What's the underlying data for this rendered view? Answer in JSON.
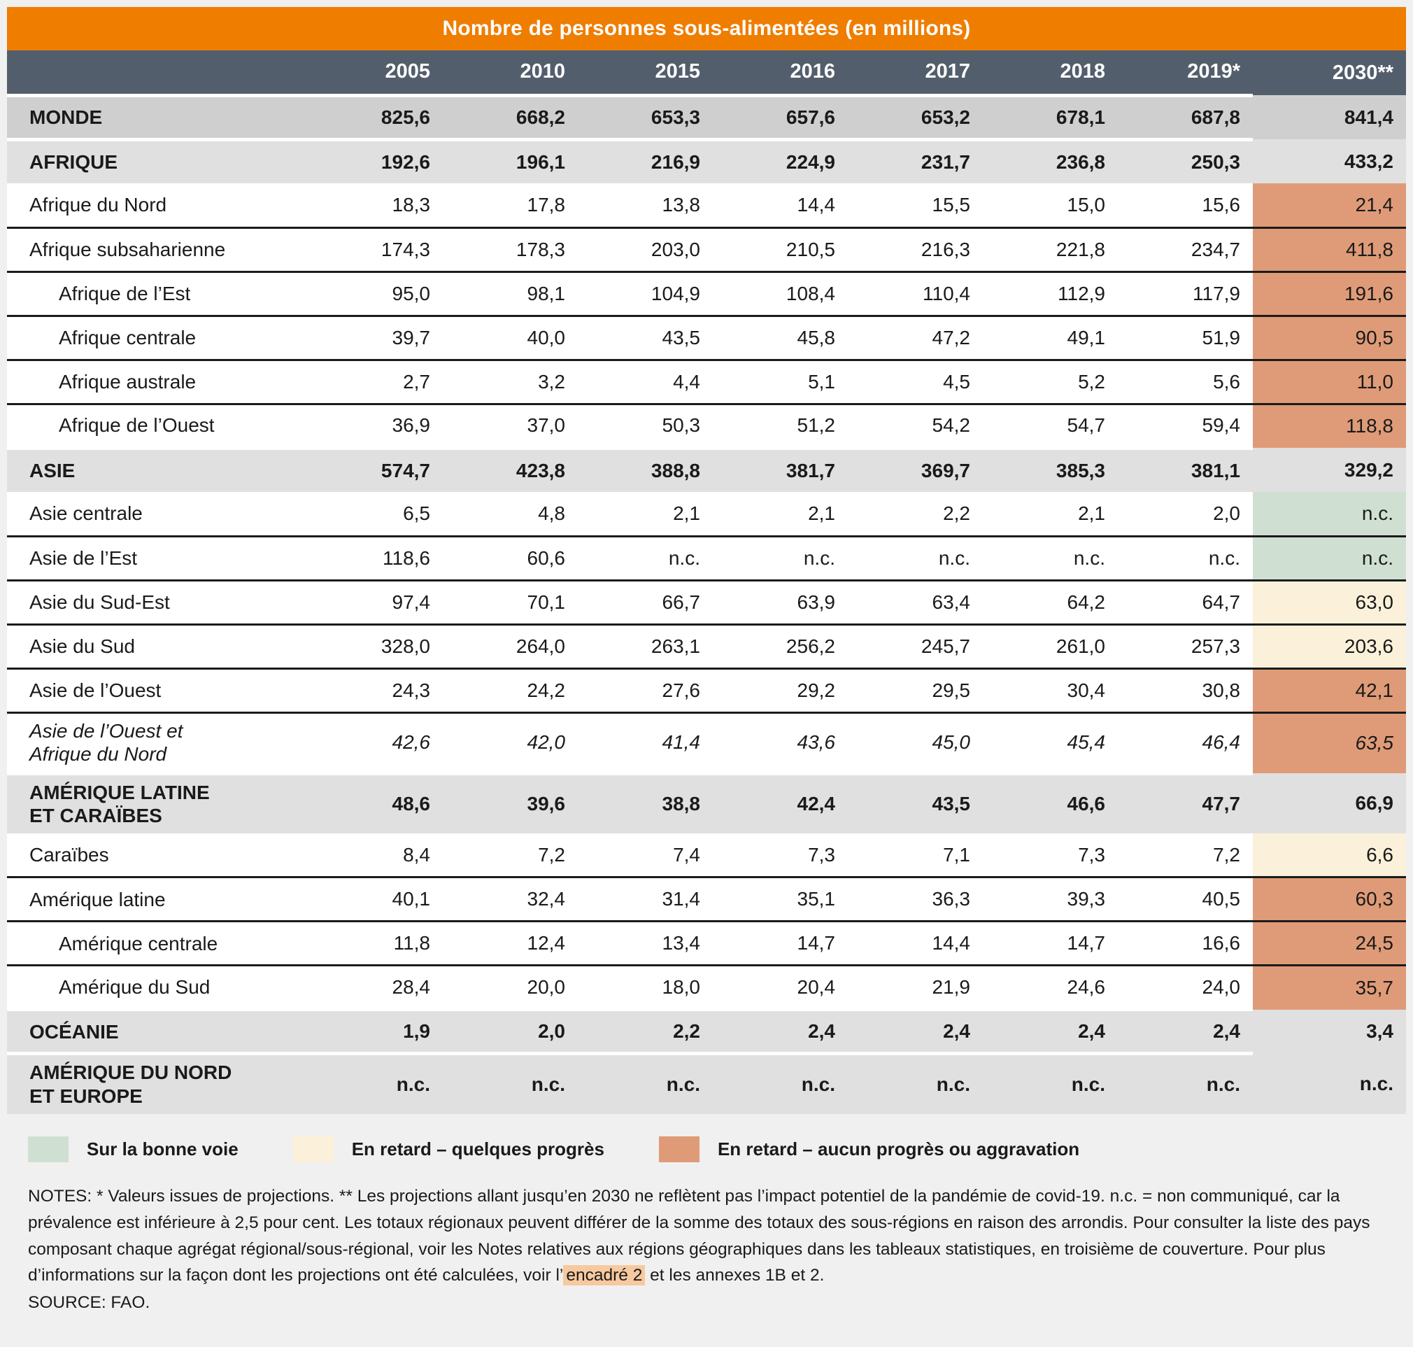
{
  "chart_data": {
    "type": "table",
    "title": "Nombre de personnes sous-alimentées (en millions)",
    "columns": [
      "2005",
      "2010",
      "2015",
      "2016",
      "2017",
      "2018",
      "2019*",
      "2030**"
    ],
    "rows": [
      {
        "label": "MONDE",
        "style": "world",
        "indent": false,
        "status": "salmon",
        "values": [
          "825,6",
          "668,2",
          "653,3",
          "657,6",
          "653,2",
          "678,1",
          "687,8",
          "841,4"
        ]
      },
      {
        "label": "AFRIQUE",
        "style": "section",
        "indent": false,
        "status": "salmon",
        "values": [
          "192,6",
          "196,1",
          "216,9",
          "224,9",
          "231,7",
          "236,8",
          "250,3",
          "433,2"
        ]
      },
      {
        "label": "Afrique du Nord",
        "style": "plain",
        "indent": false,
        "status": "salmon",
        "values": [
          "18,3",
          "17,8",
          "13,8",
          "14,4",
          "15,5",
          "15,0",
          "15,6",
          "21,4"
        ]
      },
      {
        "label": "Afrique subsaharienne",
        "style": "plain",
        "indent": false,
        "status": "salmon",
        "values": [
          "174,3",
          "178,3",
          "203,0",
          "210,5",
          "216,3",
          "221,8",
          "234,7",
          "411,8"
        ]
      },
      {
        "label": "Afrique de l’Est",
        "style": "plain",
        "indent": true,
        "status": "salmon",
        "values": [
          "95,0",
          "98,1",
          "104,9",
          "108,4",
          "110,4",
          "112,9",
          "117,9",
          "191,6"
        ]
      },
      {
        "label": "Afrique centrale",
        "style": "plain",
        "indent": true,
        "status": "salmon",
        "values": [
          "39,7",
          "40,0",
          "43,5",
          "45,8",
          "47,2",
          "49,1",
          "51,9",
          "90,5"
        ]
      },
      {
        "label": "Afrique australe",
        "style": "plain",
        "indent": true,
        "status": "salmon",
        "values": [
          "2,7",
          "3,2",
          "4,4",
          "5,1",
          "4,5",
          "5,2",
          "5,6",
          "11,0"
        ]
      },
      {
        "label": "Afrique de l’Ouest",
        "style": "plain",
        "indent": true,
        "status": "salmon",
        "values": [
          "36,9",
          "37,0",
          "50,3",
          "51,2",
          "54,2",
          "54,7",
          "59,4",
          "118,8"
        ]
      },
      {
        "label": "ASIE",
        "style": "section",
        "indent": false,
        "status": "cream",
        "values": [
          "574,7",
          "423,8",
          "388,8",
          "381,7",
          "369,7",
          "385,3",
          "381,1",
          "329,2"
        ]
      },
      {
        "label": "Asie centrale",
        "style": "plain",
        "indent": false,
        "status": "green",
        "values": [
          "6,5",
          "4,8",
          "2,1",
          "2,1",
          "2,2",
          "2,1",
          "2,0",
          "n.c."
        ]
      },
      {
        "label": "Asie de l’Est",
        "style": "plain",
        "indent": false,
        "status": "green",
        "values": [
          "118,6",
          "60,6",
          "n.c.",
          "n.c.",
          "n.c.",
          "n.c.",
          "n.c.",
          "n.c."
        ]
      },
      {
        "label": "Asie du Sud-Est",
        "style": "plain",
        "indent": false,
        "status": "cream",
        "values": [
          "97,4",
          "70,1",
          "66,7",
          "63,9",
          "63,4",
          "64,2",
          "64,7",
          "63,0"
        ]
      },
      {
        "label": "Asie du Sud",
        "style": "plain",
        "indent": false,
        "status": "cream",
        "values": [
          "328,0",
          "264,0",
          "263,1",
          "256,2",
          "245,7",
          "261,0",
          "257,3",
          "203,6"
        ]
      },
      {
        "label": "Asie de l’Ouest",
        "style": "plain",
        "indent": false,
        "status": "salmon",
        "values": [
          "24,3",
          "24,2",
          "27,6",
          "29,2",
          "29,5",
          "30,4",
          "30,8",
          "42,1"
        ]
      },
      {
        "label": "Asie de l’Ouest et\nAfrique du Nord",
        "style": "italic",
        "indent": false,
        "status": "salmon",
        "values": [
          "42,6",
          "42,0",
          "41,4",
          "43,6",
          "45,0",
          "45,4",
          "46,4",
          "63,5"
        ]
      },
      {
        "label": "AMÉRIQUE LATINE\nET CARAÏBES",
        "style": "section",
        "indent": false,
        "status": "salmon",
        "values": [
          "48,6",
          "39,6",
          "38,8",
          "42,4",
          "43,5",
          "46,6",
          "47,7",
          "66,9"
        ]
      },
      {
        "label": "Caraïbes",
        "style": "plain",
        "indent": false,
        "status": "cream",
        "values": [
          "8,4",
          "7,2",
          "7,4",
          "7,3",
          "7,1",
          "7,3",
          "7,2",
          "6,6"
        ]
      },
      {
        "label": "Amérique latine",
        "style": "plain",
        "indent": false,
        "status": "salmon",
        "values": [
          "40,1",
          "32,4",
          "31,4",
          "35,1",
          "36,3",
          "39,3",
          "40,5",
          "60,3"
        ]
      },
      {
        "label": "Amérique centrale",
        "style": "plain",
        "indent": true,
        "status": "salmon",
        "values": [
          "11,8",
          "12,4",
          "13,4",
          "14,7",
          "14,4",
          "14,7",
          "16,6",
          "24,5"
        ]
      },
      {
        "label": "Amérique du Sud",
        "style": "plain",
        "indent": true,
        "status": "salmon",
        "values": [
          "28,4",
          "20,0",
          "18,0",
          "20,4",
          "21,9",
          "24,6",
          "24,0",
          "35,7"
        ]
      },
      {
        "label": "OCÉANIE",
        "style": "section",
        "indent": false,
        "status": "salmon",
        "values": [
          "1,9",
          "2,0",
          "2,2",
          "2,4",
          "2,4",
          "2,4",
          "2,4",
          "3,4"
        ]
      },
      {
        "label": "AMÉRIQUE DU NORD\nET EUROPE",
        "style": "section",
        "indent": false,
        "status": "green",
        "values": [
          "n.c.",
          "n.c.",
          "n.c.",
          "n.c.",
          "n.c.",
          "n.c.",
          "n.c.",
          "n.c."
        ]
      }
    ],
    "legend": [
      {
        "label": "Sur la bonne voie",
        "status": "green"
      },
      {
        "label": "En retard – quelques progrès",
        "status": "cream"
      },
      {
        "label": "En retard – aucun progrès ou aggravation",
        "status": "salmon"
      }
    ]
  },
  "notes": {
    "prefix": "NOTES: * Valeurs issues de projections. ** Les projections allant jusqu’en 2030 ne reflètent pas l’impact potentiel de la pandémie de covid-19. n.c. = non communiqué, car la prévalence est inférieure à 2,5 pour cent. Les totaux régionaux peuvent différer de la somme des totaux des sous-régions en raison des arrondis. Pour consulter la liste des pays composant chaque agrégat régional/sous-régional, voir les Notes relatives aux régions géographiques dans les tableaux statistiques, en troisième de couverture. Pour plus d’informations sur la façon dont les projections ont été calculées, voir l’",
    "link": "encadré 2",
    "suffix": " et les annexes 1B et 2.",
    "source": "SOURCE: FAO."
  },
  "colors": {
    "page_bg": "#F0F0F0",
    "header_orange": "#EF7D00",
    "header_slate": "#535E6C",
    "row_world": "#CFCFCF",
    "row_section": "#E0E0E0",
    "status_salmon": "#DF9B77",
    "status_cream": "#FBF1DA",
    "status_green": "#CFE0D2",
    "separator": "#1B1B1B",
    "text": "#1A1A1A",
    "note_highlight": "#F7C99F"
  }
}
